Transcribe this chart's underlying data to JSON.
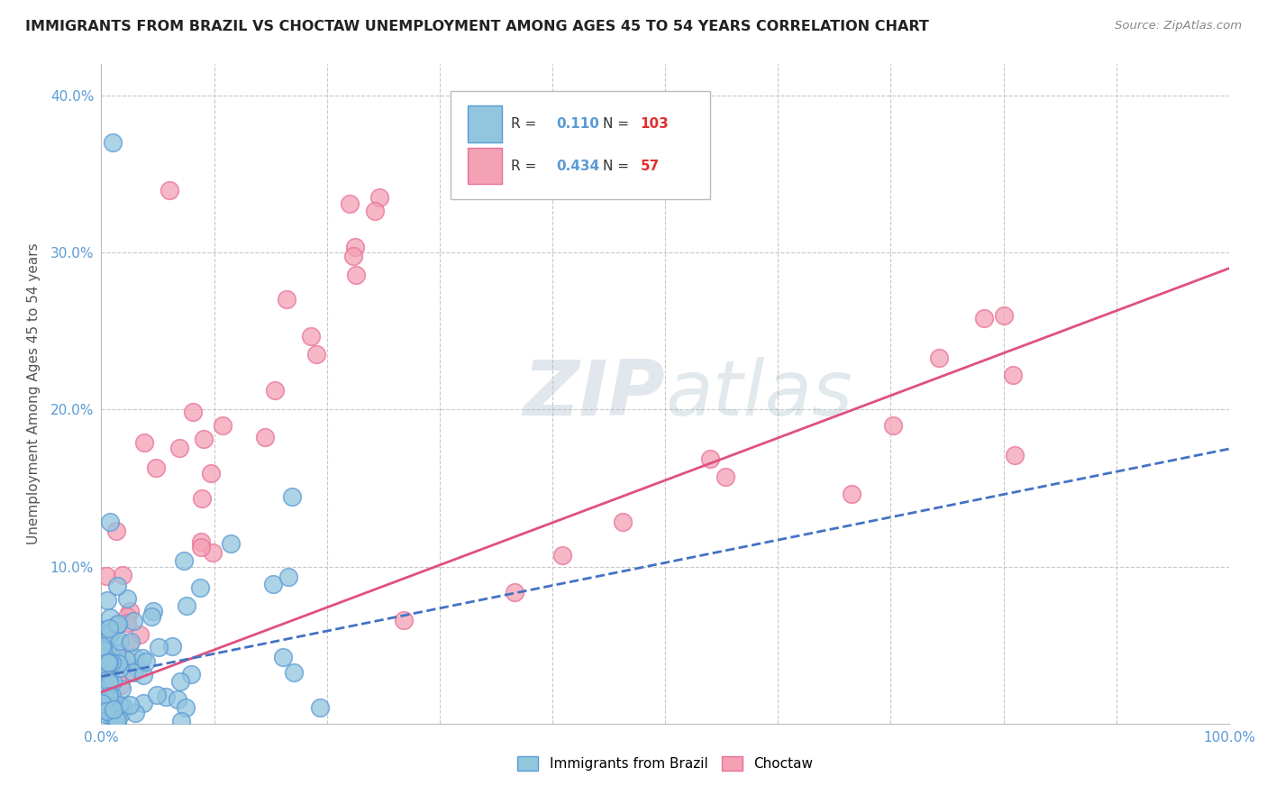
{
  "title": "IMMIGRANTS FROM BRAZIL VS CHOCTAW UNEMPLOYMENT AMONG AGES 45 TO 54 YEARS CORRELATION CHART",
  "source": "Source: ZipAtlas.com",
  "ylabel": "Unemployment Among Ages 45 to 54 years",
  "xlim": [
    0,
    1.0
  ],
  "ylim": [
    0,
    0.42
  ],
  "ytick_positions": [
    0.0,
    0.1,
    0.2,
    0.3,
    0.4
  ],
  "ytick_labels": [
    "",
    "10.0%",
    "20.0%",
    "30.0%",
    "40.0%"
  ],
  "xtick_positions": [
    0.0,
    0.1,
    0.2,
    0.3,
    0.4,
    0.5,
    0.6,
    0.7,
    0.8,
    0.9,
    1.0
  ],
  "xtick_labels": [
    "0.0%",
    "",
    "",
    "",
    "",
    "",
    "",
    "",
    "",
    "",
    "100.0%"
  ],
  "brazil_R": 0.11,
  "brazil_N": 103,
  "choctaw_R": 0.434,
  "choctaw_N": 57,
  "brazil_color": "#92C5DE",
  "brazil_edge_color": "#5B9BD5",
  "choctaw_color": "#F4A0B5",
  "choctaw_edge_color": "#E87298",
  "brazil_line_color": "#4472C4",
  "choctaw_line_color": "#E05080",
  "watermark_color": "#C8D8E8",
  "tick_color": "#5B9BD5",
  "grid_color": "#C8C8C8",
  "title_color": "#222222",
  "source_color": "#888888",
  "ylabel_color": "#555555"
}
